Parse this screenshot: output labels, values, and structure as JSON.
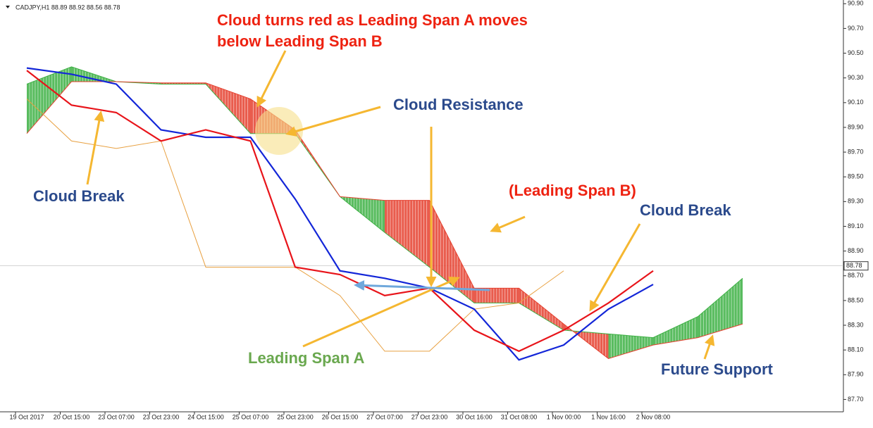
{
  "chart_data": {
    "type": "ichimoku",
    "header": "CADJPY,H1  88.89 88.92 88.56 88.78",
    "categories": [
      "19 Oct 2017",
      "20 Oct 15:00",
      "23 Oct 07:00",
      "23 Oct 23:00",
      "24 Oct 15:00",
      "25 Oct 07:00",
      "25 Oct 23:00",
      "26 Oct 15:00",
      "27 Oct 07:00",
      "27 Oct 23:00",
      "30 Oct 16:00",
      "31 Oct 08:00",
      "1 Nov 00:00",
      "1 Nov 16:00",
      "2 Nov 08:00",
      null,
      null
    ],
    "series": [
      {
        "color": "#e8141a",
        "values": [
          90.36,
          90.08,
          90.02,
          89.79,
          89.88,
          89.79,
          88.77,
          88.71,
          88.54,
          88.6,
          88.26,
          88.09,
          88.26,
          88.48,
          88.74,
          null,
          null
        ]
      },
      {
        "color": "#1326d8",
        "values": [
          90.38,
          90.33,
          90.25,
          89.88,
          89.82,
          89.82,
          89.32,
          88.74,
          88.68,
          88.6,
          88.43,
          88.02,
          88.14,
          88.43,
          88.63,
          null,
          null
        ]
      },
      {
        "color": "#e8a040",
        "values": [
          90.13,
          89.79,
          89.73,
          89.79,
          88.77,
          88.77,
          88.77,
          88.54,
          88.09,
          88.09,
          88.43,
          88.48,
          88.74,
          null,
          null,
          null,
          null
        ]
      },
      {
        "color": "#3cb043",
        "values": [
          90.25,
          90.39,
          90.27,
          90.25,
          90.25,
          89.85,
          89.85,
          89.34,
          89.05,
          88.77,
          88.48,
          88.48,
          88.26,
          88.23,
          88.2,
          88.37,
          88.68
        ]
      },
      {
        "color": "#e53f2e",
        "values": [
          89.85,
          90.27,
          90.27,
          90.26,
          90.26,
          90.13,
          89.88,
          89.34,
          89.31,
          89.31,
          88.6,
          88.6,
          88.31,
          88.03,
          88.14,
          88.2,
          88.31
        ]
      }
    ],
    "current_price": 88.78,
    "ylim": [
      87.6,
      90.93
    ],
    "yticks": [
      {
        "value": 87.7,
        "label": "87.70"
      },
      {
        "value": 87.9,
        "label": "87.90"
      },
      {
        "value": 88.1,
        "label": "88.10"
      },
      {
        "value": 88.3,
        "label": "88.30"
      },
      {
        "value": 88.5,
        "label": "88.50"
      },
      {
        "value": 88.7,
        "label": "88.70"
      },
      {
        "value": 88.9,
        "label": "88.90"
      },
      {
        "value": 89.1,
        "label": "89.10"
      },
      {
        "value": 89.3,
        "label": "89.30"
      },
      {
        "value": 89.5,
        "label": "89.50"
      },
      {
        "value": 89.7,
        "label": "89.70"
      },
      {
        "value": 89.9,
        "label": "89.90"
      },
      {
        "value": 90.1,
        "label": "90.10"
      },
      {
        "value": 90.3,
        "label": "90.30"
      },
      {
        "value": 90.5,
        "label": "90.50"
      },
      {
        "value": 90.7,
        "label": "90.70"
      },
      {
        "value": 90.9,
        "label": "90.90"
      }
    ],
    "annotations": [
      {
        "text": "Cloud turns red as Leading Span A moves below Leading Span B",
        "color": "#ee2211"
      },
      {
        "text": "Cloud Resistance",
        "color": "#2b4a8c"
      },
      {
        "text": "Cloud Break",
        "color": "#2b4a8c"
      },
      {
        "text": "(Leading Span B)",
        "color": "#ee2211"
      },
      {
        "text": "Cloud Break",
        "color": "#2b4a8c"
      },
      {
        "text": "Leading Span A",
        "color": "#6aa84f"
      },
      {
        "text": "Future Support",
        "color": "#2b4a8c"
      }
    ]
  }
}
